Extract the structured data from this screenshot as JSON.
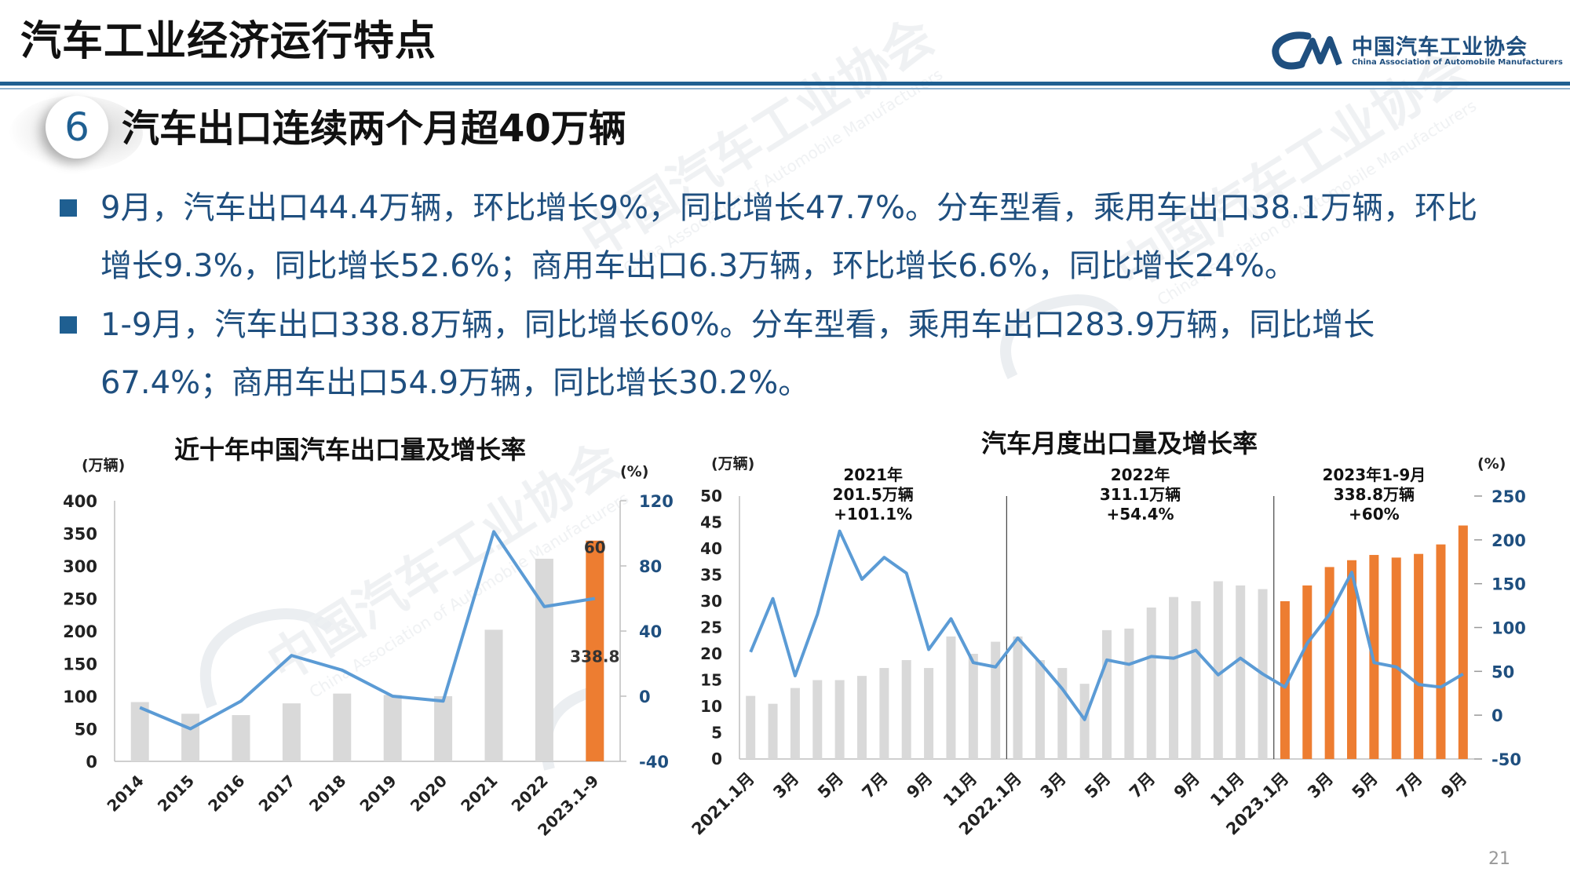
{
  "header": {
    "title": "汽车工业经济运行特点",
    "org_name_cn": "中国汽车工业协会",
    "org_name_en": "China Association of Automobile Manufacturers"
  },
  "section": {
    "number": "6",
    "heading": "汽车出口连续两个月超40万辆"
  },
  "paragraphs": [
    "9月，汽车出口44.4万辆，环比增长9%，同比增长47.7%。分车型看，乘用车出口38.1万辆，环比增长9.3%，同比增长52.6%；商用车出口6.3万辆，环比增长6.6%，同比增长24%。",
    "1-9月，汽车出口338.8万辆，同比增长60%。分车型看，乘用车出口283.9万辆，同比增长67.4%；商用车出口54.9万辆，同比增长30.2%。"
  ],
  "colors": {
    "accent": "#1f5f91",
    "text_blue": "#1f4f7f",
    "bar_gray": "#d9d9d9",
    "bar_orange": "#ed7d31",
    "line_blue": "#5b9bd5"
  },
  "chart_data": [
    {
      "type": "bar",
      "title": "近十年中国汽车出口量及增长率",
      "ylabel": "(万辆)",
      "y2label": "(%)",
      "categories": [
        "2014",
        "2015",
        "2016",
        "2017",
        "2018",
        "2019",
        "2020",
        "2021",
        "2022",
        "2023.1-9"
      ],
      "ylim": [
        0,
        400
      ],
      "y_ticks": [
        "0",
        "50",
        "100",
        "150",
        "200",
        "250",
        "300",
        "350",
        "400"
      ],
      "y2lim": [
        -40,
        120
      ],
      "y2_ticks": [
        "-40",
        "0",
        "40",
        "80",
        "120"
      ],
      "series": [
        {
          "kind": "bar",
          "values": [
            91,
            73,
            71,
            89,
            104,
            102,
            100,
            202,
            311,
            338.8
          ],
          "highlight_index": 9
        },
        {
          "kind": "line",
          "axis": "right",
          "values": [
            -7,
            -20,
            -3,
            25,
            16,
            0,
            -3,
            101,
            55,
            60
          ]
        }
      ],
      "data_labels": [
        "60",
        "338.8"
      ]
    },
    {
      "type": "bar",
      "title": "汽车月度出口量及增长率",
      "ylabel": "(万辆)",
      "y2label": "(%)",
      "categories": [
        "2021.1月",
        "2月",
        "3月",
        "4月",
        "5月",
        "6月",
        "7月",
        "8月",
        "9月",
        "10月",
        "11月",
        "12月",
        "2022.1月",
        "2月",
        "3月",
        "4月",
        "5月",
        "6月",
        "7月",
        "8月",
        "9月",
        "10月",
        "11月",
        "12月",
        "2023.1月",
        "2月",
        "3月",
        "4月",
        "5月",
        "6月",
        "7月",
        "8月",
        "9月"
      ],
      "tick_labels": [
        "2021.1月",
        "3月",
        "5月",
        "7月",
        "9月",
        "11月",
        "2022.1月",
        "3月",
        "5月",
        "7月",
        "9月",
        "11月",
        "2023.1月",
        "3月",
        "5月",
        "7月",
        "9月"
      ],
      "ylim": [
        0,
        50
      ],
      "y_ticks": [
        "0",
        "5",
        "10",
        "15",
        "20",
        "25",
        "30",
        "35",
        "40",
        "45",
        "50"
      ],
      "y2lim": [
        -50,
        250
      ],
      "y2_ticks": [
        "-50",
        "0",
        "50",
        "100",
        "150",
        "200",
        "250"
      ],
      "series": [
        {
          "kind": "bar",
          "values": [
            12,
            10.5,
            13.5,
            15,
            15,
            15.8,
            17.3,
            18.8,
            17.3,
            23.3,
            20,
            22.3,
            23.3,
            18.8,
            17.3,
            14.3,
            24.5,
            24.8,
            28.8,
            30.8,
            30,
            33.8,
            33,
            32.3,
            30,
            33,
            36.5,
            37.8,
            38.8,
            38.3,
            39,
            40.8,
            44.4
          ]
        },
        {
          "kind": "line",
          "axis": "right",
          "values": [
            72,
            133,
            45,
            115,
            210,
            155,
            180,
            162,
            75,
            110,
            60,
            55,
            88,
            60,
            30,
            -5,
            63,
            58,
            67,
            65,
            74,
            46,
            65,
            47,
            32,
            82,
            115,
            163,
            60,
            55,
            35,
            32,
            47
          ]
        }
      ],
      "annotations": [
        {
          "year": "2021年",
          "total": "201.5万辆",
          "growth": "+101.1%"
        },
        {
          "year": "2022年",
          "total": "311.1万辆",
          "growth": "+54.4%"
        },
        {
          "year": "2023年1-9月",
          "total": "338.8万辆",
          "growth": "+60%"
        }
      ]
    }
  ],
  "page_number": "21"
}
